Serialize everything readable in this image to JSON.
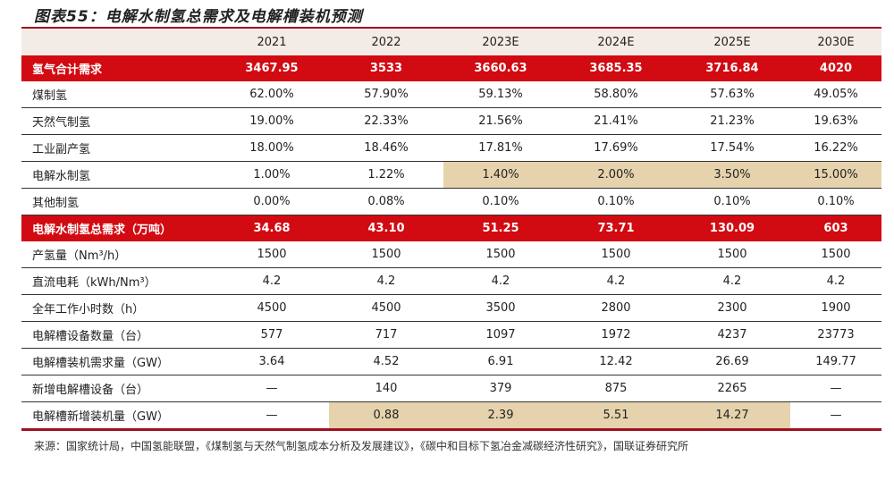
{
  "title": "图表55：电解水制氢总需求及电解槽装机预测",
  "columns": [
    "",
    "2021",
    "2022",
    "2023E",
    "2024E",
    "2025E",
    "2030E"
  ],
  "rows": [
    {
      "label": "氢气合计需求",
      "values": [
        "3467.95",
        "3533",
        "3660.63",
        "3685.35",
        "3716.84",
        "4020"
      ],
      "style": "red"
    },
    {
      "label": "煤制氢",
      "values": [
        "62.00%",
        "57.90%",
        "59.13%",
        "58.80%",
        "57.63%",
        "49.05%"
      ]
    },
    {
      "label": "天然气制氢",
      "values": [
        "19.00%",
        "22.33%",
        "21.56%",
        "21.41%",
        "21.23%",
        "19.63%"
      ]
    },
    {
      "label": "工业副产氢",
      "values": [
        "18.00%",
        "18.46%",
        "17.81%",
        "17.69%",
        "17.54%",
        "16.22%"
      ]
    },
    {
      "label": "电解水制氢",
      "values": [
        "1.00%",
        "1.22%",
        "1.40%",
        "2.00%",
        "3.50%",
        "15.00%"
      ],
      "highlight": [
        2,
        3,
        4,
        5
      ]
    },
    {
      "label": "其他制氢",
      "values": [
        "0.00%",
        "0.08%",
        "0.10%",
        "0.10%",
        "0.10%",
        "0.10%"
      ]
    },
    {
      "label": "电解水制氢总需求（万吨）",
      "values": [
        "34.68",
        "43.10",
        "51.25",
        "73.71",
        "130.09",
        "603"
      ],
      "style": "red"
    },
    {
      "label": "产氢量（Nm³/h）",
      "values": [
        "1500",
        "1500",
        "1500",
        "1500",
        "1500",
        "1500"
      ]
    },
    {
      "label": "直流电耗（kWh/Nm³）",
      "values": [
        "4.2",
        "4.2",
        "4.2",
        "4.2",
        "4.2",
        "4.2"
      ]
    },
    {
      "label": "全年工作小时数（h）",
      "values": [
        "4500",
        "4500",
        "3500",
        "2800",
        "2300",
        "1900"
      ]
    },
    {
      "label": "电解槽设备数量（台）",
      "values": [
        "577",
        "717",
        "1097",
        "1972",
        "4237",
        "23773"
      ]
    },
    {
      "label": "电解槽装机需求量（GW）",
      "values": [
        "3.64",
        "4.52",
        "6.91",
        "12.42",
        "26.69",
        "149.77"
      ]
    },
    {
      "label": "新增电解槽设备（台）",
      "values": [
        "—",
        "140",
        "379",
        "875",
        "2265",
        "—"
      ]
    },
    {
      "label": "电解槽新增装机量（GW）",
      "values": [
        "—",
        "0.88",
        "2.39",
        "5.51",
        "14.27",
        "—"
      ],
      "highlight": [
        1,
        2,
        3,
        4
      ]
    }
  ],
  "highlight_color": "#e6d3ad",
  "accent_color": "#d20a11",
  "source": "来源：国家统计局，中国氢能联盟，《煤制氢与天然气制氢成本分析及发展建议》，《碳中和目标下氢冶金减碳经济性研究》，国联证券研究所"
}
